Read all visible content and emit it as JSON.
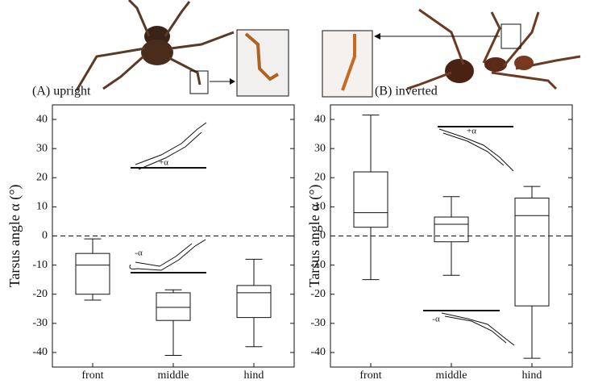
{
  "chart_data": [
    {
      "type": "box",
      "title": "(A) upright",
      "ylabel": "Tarsus angle α (°)",
      "categories": [
        "front",
        "middle",
        "hind"
      ],
      "boxes": [
        {
          "whislo": -22,
          "q1": -20,
          "med": -10,
          "q3": -6,
          "whishi": -1
        },
        {
          "whislo": -41,
          "q1": -29,
          "med": -24.5,
          "q3": -19.5,
          "whishi": -18.5
        },
        {
          "whislo": -38,
          "q1": -28,
          "med": -19.5,
          "q3": -17,
          "whishi": -8
        }
      ],
      "annotations": [
        "+α",
        "-α"
      ],
      "ylim": [
        -45,
        45
      ],
      "yticks": [
        -40,
        -30,
        -20,
        -10,
        0,
        10,
        20,
        30,
        40
      ],
      "zero_line": true
    },
    {
      "type": "box",
      "title": "(B) inverted",
      "ylabel": "Tarsus angle α (°)",
      "categories": [
        "front",
        "middle",
        "hind"
      ],
      "boxes": [
        {
          "whislo": -15,
          "q1": 3,
          "med": 8,
          "q3": 22,
          "whishi": 41.5
        },
        {
          "whislo": -13.5,
          "q1": -2,
          "med": 4,
          "q3": 6.5,
          "whishi": 13.5
        },
        {
          "whislo": -42,
          "q1": -24,
          "med": 7,
          "q3": 13,
          "whishi": 17
        }
      ],
      "annotations": [
        "+α",
        "-α"
      ],
      "ylim": [
        -45,
        45
      ],
      "yticks": [
        -40,
        -30,
        -20,
        -10,
        0,
        10,
        20,
        30,
        40
      ],
      "zero_line": true
    }
  ]
}
